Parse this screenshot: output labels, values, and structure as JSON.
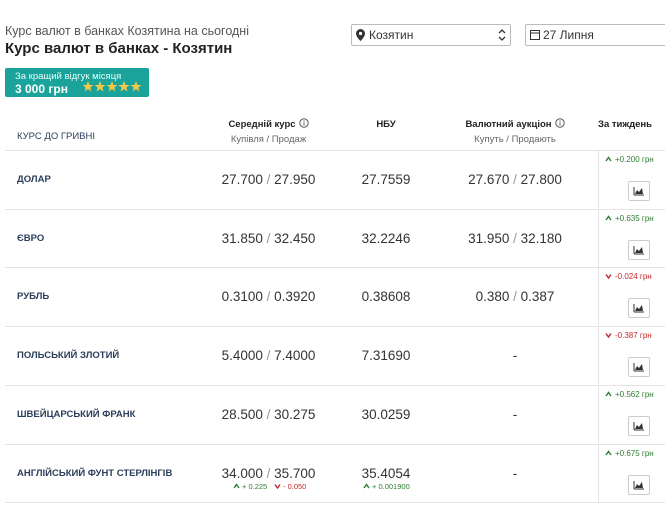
{
  "header": {
    "subtitle": "Курс валют в банках Козятина на сьогодні",
    "title": "Курс валют в банках - Козятин",
    "city": "Козятин",
    "date": "27 Липня"
  },
  "badge": {
    "text": "За кращий відгук місяця",
    "amount": "3 000 грн"
  },
  "table": {
    "columns": [
      {
        "title": "КУРС ДО ГРИВНІ"
      },
      {
        "title": "Середній курс",
        "sub": "Купівля / Продаж"
      },
      {
        "title": "НБУ"
      },
      {
        "title": "Валютний аукціон",
        "sub": "Купуть / Продають"
      },
      {
        "title": "За тиждень"
      }
    ],
    "rows": [
      {
        "name": "Долар",
        "avg": [
          "27.700",
          "27.950"
        ],
        "nbu": "27.7559",
        "auction": [
          "27.670",
          "27.800"
        ],
        "week": "+0.200 грн",
        "dir": "up"
      },
      {
        "name": "Євро",
        "avg": [
          "31.850",
          "32.450"
        ],
        "nbu": "32.2246",
        "auction": [
          "31.950",
          "32.180"
        ],
        "week": "+0.635 грн",
        "dir": "up"
      },
      {
        "name": "Рубль",
        "avg": [
          "0.3100",
          "0.3920"
        ],
        "nbu": "0.38608",
        "auction": [
          "0.380",
          "0.387"
        ],
        "week": "-0.024 грн",
        "dir": "down"
      },
      {
        "name": "Польський злотий",
        "avg": [
          "5.4000",
          "7.4000"
        ],
        "nbu": "7.31690",
        "auction": "-",
        "week": "-0.387 грн",
        "dir": "down"
      },
      {
        "name": "Швейцарський франк",
        "avg": [
          "28.500",
          "30.275"
        ],
        "nbu": "30.0259",
        "auction": "-",
        "week": "+0.562 грн",
        "dir": "up"
      },
      {
        "name": "Англійський фунт стерлінгів",
        "avg": [
          "34.000",
          "35.700"
        ],
        "nbu": "35.4054",
        "auction": "-",
        "week": "+0.675 грн",
        "dir": "up",
        "avg_changes": [
          "+ 0.225",
          "- 0.050"
        ],
        "nbu_change": "+ 0.001900"
      }
    ]
  }
}
